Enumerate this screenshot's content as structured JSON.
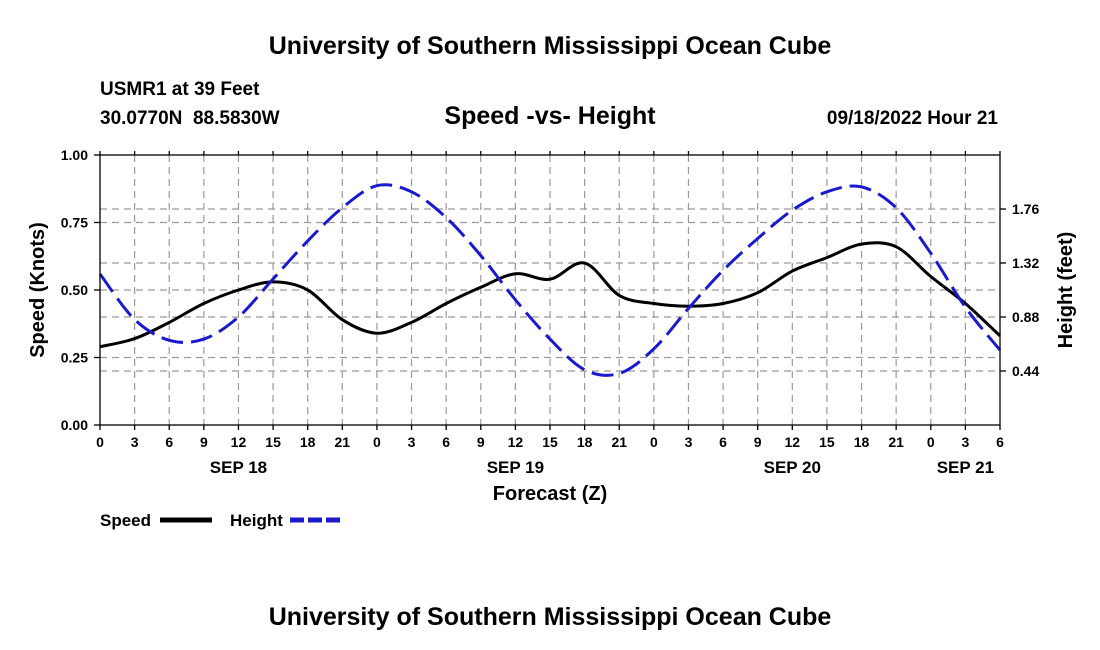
{
  "chart_data": {
    "type": "line",
    "title": "University of Southern Mississippi Ocean Cube",
    "footer_title": "University of Southern Mississippi Ocean Cube",
    "station": "USMR1 at 39 Feet",
    "location": "30.0770N  88.5830W",
    "subtitle": "Speed -vs- Height",
    "run_time": "09/18/2022 Hour 21",
    "xlabel": "Forecast (Z)",
    "ylabel_left": "Speed (Knots)",
    "ylabel_right": "Height (feet)",
    "x_range_hours": [
      0,
      78
    ],
    "x_tick_labels": [
      "0",
      "3",
      "6",
      "9",
      "12",
      "15",
      "18",
      "21",
      "0",
      "3",
      "6",
      "9",
      "12",
      "15",
      "18",
      "21",
      "0",
      "3",
      "6",
      "9",
      "12",
      "15",
      "18",
      "21",
      "0",
      "3",
      "6"
    ],
    "date_labels": [
      {
        "label": "SEP 18",
        "hour": 12
      },
      {
        "label": "SEP 19",
        "hour": 36
      },
      {
        "label": "SEP 20",
        "hour": 60
      },
      {
        "label": "SEP 21",
        "hour": 75
      }
    ],
    "y_left": {
      "range": [
        0,
        1
      ],
      "ticks": [
        "0.00",
        "0.25",
        "0.50",
        "0.75",
        "1.00"
      ],
      "tick_values": [
        0,
        0.25,
        0.5,
        0.75,
        1.0
      ]
    },
    "y_right": {
      "range": [
        0,
        2.2
      ],
      "ticks": [
        "0.44",
        "0.88",
        "1.32",
        "1.76"
      ],
      "tick_values": [
        0.44,
        0.88,
        1.32,
        1.76
      ]
    },
    "legend": [
      {
        "label": "Speed",
        "color": "#000000",
        "style": "solid"
      },
      {
        "label": "Height",
        "color": "#1a1acc",
        "style": "dashed"
      }
    ],
    "series": [
      {
        "name": "Speed",
        "axis": "left",
        "color": "#000000",
        "points": [
          [
            0,
            0.29
          ],
          [
            3,
            0.32
          ],
          [
            6,
            0.38
          ],
          [
            9,
            0.45
          ],
          [
            12,
            0.5
          ],
          [
            15,
            0.53
          ],
          [
            18,
            0.5
          ],
          [
            21,
            0.39
          ],
          [
            24,
            0.34
          ],
          [
            27,
            0.38
          ],
          [
            30,
            0.45
          ],
          [
            33,
            0.51
          ],
          [
            36,
            0.56
          ],
          [
            39,
            0.54
          ],
          [
            42,
            0.6
          ],
          [
            45,
            0.48
          ],
          [
            48,
            0.45
          ],
          [
            51,
            0.44
          ],
          [
            54,
            0.45
          ],
          [
            57,
            0.49
          ],
          [
            60,
            0.57
          ],
          [
            63,
            0.62
          ],
          [
            66,
            0.67
          ],
          [
            69,
            0.66
          ],
          [
            72,
            0.55
          ],
          [
            75,
            0.45
          ],
          [
            78,
            0.33
          ]
        ]
      },
      {
        "name": "Height",
        "axis": "right",
        "color": "#1a1acc",
        "points": [
          [
            0,
            1.23
          ],
          [
            3,
            0.86
          ],
          [
            6,
            0.69
          ],
          [
            9,
            0.7
          ],
          [
            12,
            0.88
          ],
          [
            15,
            1.19
          ],
          [
            18,
            1.5
          ],
          [
            21,
            1.77
          ],
          [
            24,
            1.95
          ],
          [
            27,
            1.9
          ],
          [
            30,
            1.69
          ],
          [
            33,
            1.38
          ],
          [
            36,
            1.02
          ],
          [
            39,
            0.7
          ],
          [
            42,
            0.45
          ],
          [
            45,
            0.42
          ],
          [
            48,
            0.62
          ],
          [
            51,
            0.95
          ],
          [
            54,
            1.26
          ],
          [
            57,
            1.52
          ],
          [
            60,
            1.75
          ],
          [
            63,
            1.9
          ],
          [
            66,
            1.94
          ],
          [
            69,
            1.77
          ],
          [
            72,
            1.4
          ],
          [
            75,
            0.96
          ],
          [
            78,
            0.61
          ]
        ]
      }
    ]
  }
}
